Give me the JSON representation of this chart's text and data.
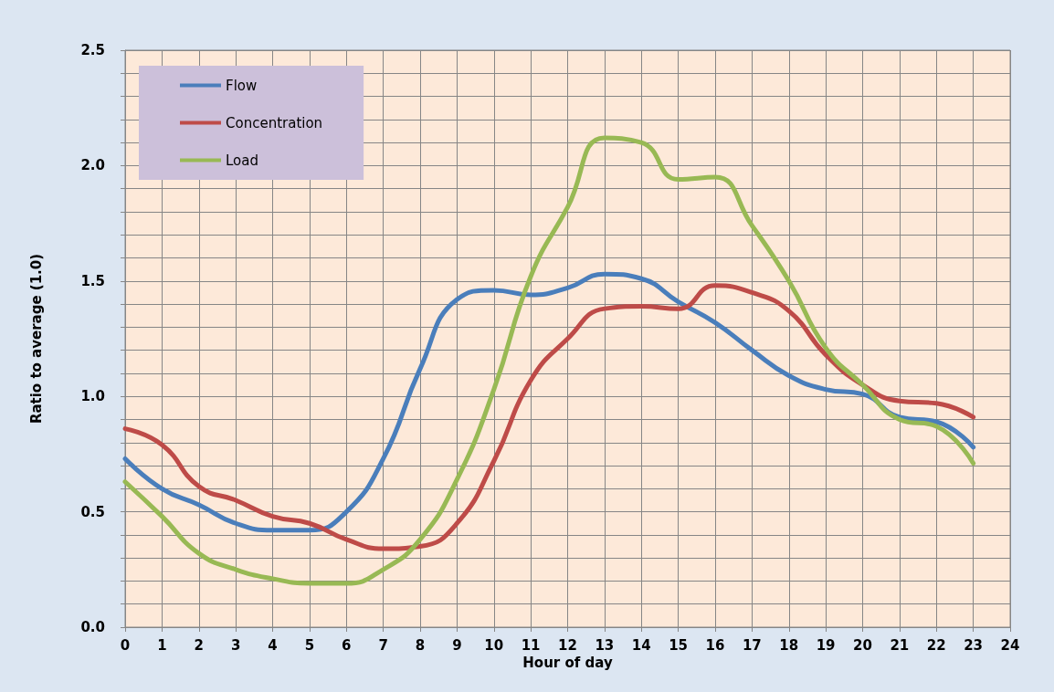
{
  "chart_data": {
    "type": "line",
    "xlabel": "Hour of day",
    "ylabel": "Ratio to average (1.0)",
    "x": [
      0,
      1,
      2,
      3,
      4,
      5,
      6,
      7,
      8,
      9,
      10,
      11,
      12,
      13,
      14,
      15,
      16,
      17,
      18,
      19,
      20,
      21,
      22,
      23
    ],
    "series": [
      {
        "name": "Flow",
        "color": "#4a7ebb",
        "values": [
          0.73,
          0.6,
          0.53,
          0.45,
          0.42,
          0.42,
          0.5,
          0.73,
          1.12,
          1.42,
          1.46,
          1.44,
          1.47,
          1.53,
          1.51,
          1.41,
          1.32,
          1.2,
          1.09,
          1.03,
          1.01,
          0.91,
          0.89,
          0.78
        ]
      },
      {
        "name": "Concentration",
        "color": "#be4b48",
        "values": [
          0.86,
          0.79,
          0.61,
          0.55,
          0.48,
          0.45,
          0.38,
          0.34,
          0.35,
          0.45,
          0.72,
          1.07,
          1.25,
          1.38,
          1.39,
          1.38,
          1.48,
          1.45,
          1.37,
          1.18,
          1.05,
          0.98,
          0.97,
          0.91
        ]
      },
      {
        "name": "Load",
        "color": "#98b954",
        "values": [
          0.63,
          0.48,
          0.32,
          0.25,
          0.21,
          0.19,
          0.19,
          0.25,
          0.38,
          0.64,
          1.03,
          1.52,
          1.82,
          2.12,
          2.1,
          1.94,
          1.95,
          1.74,
          1.5,
          1.21,
          1.05,
          0.9,
          0.87,
          0.71
        ]
      }
    ],
    "xlim": [
      0,
      24
    ],
    "xticks": [
      0,
      1,
      2,
      3,
      4,
      5,
      6,
      7,
      8,
      9,
      10,
      11,
      12,
      13,
      14,
      15,
      16,
      17,
      18,
      19,
      20,
      21,
      22,
      23,
      24
    ],
    "ylim": [
      0,
      2.5
    ],
    "yticks": [
      {
        "value": 0,
        "label": "0.0"
      },
      {
        "value": 0.1,
        "label": null
      },
      {
        "value": 0.2,
        "label": null
      },
      {
        "value": 0.3,
        "label": null
      },
      {
        "value": 0.4,
        "label": null
      },
      {
        "value": 0.5,
        "label": "0.5"
      },
      {
        "value": 0.6,
        "label": null
      },
      {
        "value": 0.7,
        "label": null
      },
      {
        "value": 0.8,
        "label": null
      },
      {
        "value": 0.9,
        "label": null
      },
      {
        "value": 1.0,
        "label": "1.0"
      },
      {
        "value": 1.1,
        "label": null
      },
      {
        "value": 1.2,
        "label": null
      },
      {
        "value": 1.3,
        "label": null
      },
      {
        "value": 1.4,
        "label": null
      },
      {
        "value": 1.5,
        "label": "1.5"
      },
      {
        "value": 1.6,
        "label": null
      },
      {
        "value": 1.7,
        "label": null
      },
      {
        "value": 1.8,
        "label": null
      },
      {
        "value": 1.9,
        "label": null
      },
      {
        "value": 2.0,
        "label": "2.0"
      },
      {
        "value": 2.1,
        "label": null
      },
      {
        "value": 2.2,
        "label": null
      },
      {
        "value": 2.3,
        "label": null
      },
      {
        "value": 2.4,
        "label": null
      },
      {
        "value": 2.5,
        "label": "2.5"
      }
    ],
    "grid": true,
    "legend": "top left",
    "marker": "none",
    "line_style": "solid"
  }
}
